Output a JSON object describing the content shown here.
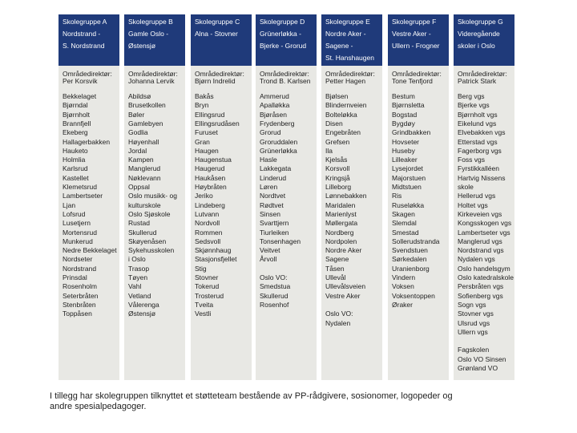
{
  "columns": [
    {
      "title": "Skolegruppe A",
      "area": [
        "Nordstrand -",
        "S. Nordstrand"
      ],
      "director_label": "Områdedirektør:",
      "director": "Per Korsvik",
      "schools": [
        "Bekkelaget",
        "Bjørndal",
        "Bjørnholt",
        "Brannfjell",
        "Ekeberg",
        "Hallagerbakken",
        "Hauketo",
        "Holmlia",
        "Karlsrud",
        "Kastellet",
        "Klemetsrud",
        "Lambertseter",
        "Ljan",
        "Lofsrud",
        "Lusetjern",
        "Mortensrud",
        "Munkerud",
        "Nedre Bekkelaget",
        "Nordseter",
        "Nordstrand",
        "Prinsdal",
        "Rosenholm",
        "Seterbråten",
        "Stenbråten",
        "Toppåsen"
      ]
    },
    {
      "title": "Skolegruppe B",
      "area": [
        "Gamle Oslo -",
        "Østensjø"
      ],
      "director_label": "Områdedirektør:",
      "director": "Johanna Lervik",
      "schools": [
        "Abildsø",
        "Brusetkollen",
        "Bøler",
        "Gamlebyen",
        "Godlia",
        "Høyenhall",
        "Jordal",
        "Kampen",
        "Manglerud",
        "Nøklevann",
        "Oppsal",
        "Oslo musikk- og",
        "kulturskole",
        "Oslo Sjøskole",
        "Rustad",
        "Skullerud",
        "Skøyenåsen",
        "Sykehusskolen",
        "i Oslo",
        "Trasop",
        "Tøyen",
        "Vahl",
        "Vetland",
        "Vålerenga",
        "Østensjø"
      ]
    },
    {
      "title": "Skolegruppe C",
      "area": [
        "Alna - Stovner"
      ],
      "director_label": "Områdedirektør:",
      "director": "Bjørn Indrelid",
      "schools": [
        "Bakås",
        "Bryn",
        "Ellingsrud",
        "Ellingsrudåsen",
        "Furuset",
        "Gran",
        "Haugen",
        "Haugenstua",
        "Haugerud",
        "Haukåsen",
        "Høybråten",
        "Jeriko",
        "Lindeberg",
        "Lutvann",
        "Nordvoll",
        "Rommen",
        "Sedsvoll",
        "Skjønnhaug",
        "Stasjonsfjellet",
        "Stig",
        "Stovner",
        "Tokerud",
        "Trosterud",
        "Tveita",
        "Vestli"
      ]
    },
    {
      "title": "Skolegruppe D",
      "area": [
        "Grünerløkka -",
        "Bjerke - Grorud"
      ],
      "director_label": "Områdedirektør:",
      "director": "Trond B. Karlsen",
      "schools": [
        "Ammerud",
        "Apalløkka",
        "Bjøråsen",
        "Frydenberg",
        "Grorud",
        "Groruddalen",
        "Grünerløkka",
        "Hasle",
        "Lakkegata",
        "Linderud",
        "Løren",
        "Nordtvet",
        "Rødtvet",
        "Sinsen",
        "Svarttjern",
        "Tiurleiken",
        "Tonsenhagen",
        "Veitvet",
        "Årvoll"
      ],
      "extra": [
        "Oslo VO:",
        "Smedstua",
        "Skullerud",
        "Rosenhof"
      ]
    },
    {
      "title": "Skolegruppe E",
      "area": [
        "Nordre Aker -",
        "Sagene -",
        "St. Hanshaugen"
      ],
      "director_label": "Områdedirektør:",
      "director": "Petter Hagen",
      "schools": [
        "Bjølsen",
        "Blindernveien",
        "Bolteløkka",
        "Disen",
        "Engebråten",
        "Grefsen",
        "Ila",
        "Kjelsås",
        "Korsvoll",
        "Kringsjå",
        "Lilleborg",
        "Lønnebakken",
        "Maridalen",
        "Marienlyst",
        "Møllergata",
        "Nordberg",
        "Nordpolen",
        "Nordre Aker",
        "Sagene",
        "Tåsen",
        "Ullevål",
        "Ullevålsveien",
        "Vestre Aker"
      ],
      "extra": [
        "Oslo VO:",
        "Nydalen"
      ]
    },
    {
      "title": "Skolegruppe F",
      "area": [
        "Vestre Aker -",
        "Ullern - Frogner"
      ],
      "director_label": "Områdedirektør:",
      "director": "Tone Tenfjord",
      "schools": [
        "Bestum",
        "Bjørnsletta",
        "Bogstad",
        "Bygdøy",
        "Grindbakken",
        "Hovseter",
        "Huseby",
        "Lilleaker",
        "Lysejordet",
        "Majorstuen",
        "Midtstuen",
        "Ris",
        "Ruseløkka",
        "Skagen",
        "Slemdal",
        "Smestad",
        "Sollerudstranda",
        "Svendstuen",
        "Sørkedalen",
        "Uranienborg",
        "Vindern",
        "Voksen",
        "Voksentoppen",
        "Øraker"
      ]
    },
    {
      "title": "Skolegruppe G",
      "area": [
        "Videregående",
        "skoler i Oslo"
      ],
      "director_label": "Områdedirektør:",
      "director": "Patrick Stark",
      "schools": [
        "Berg vgs",
        "Bjerke vgs",
        "Bjørnholt vgs",
        "Eikelund vgs",
        "Elvebakken vgs",
        "Etterstad vgs",
        "Fagerborg vgs",
        "Foss vgs",
        "Fyrstikkalléen",
        "Hartvig Nissens",
        "skole",
        "Hellerud vgs",
        "Holtet vgs",
        "Kirkeveien vgs",
        "Kongsskogen vgs",
        "Lambertseter vgs",
        "Manglerud vgs",
        "Nordstrand vgs",
        "Nydalen vgs",
        "Oslo handelsgym",
        "Oslo katedralskole",
        "Persbråten vgs",
        "Sofienberg vgs",
        "Sogn vgs",
        "Stovner vgs",
        "Ulsrud vgs",
        "Ullern vgs"
      ],
      "extra": [
        "Fagskolen",
        "Oslo VO Sinsen",
        "Grønland VO"
      ]
    }
  ],
  "footer": [
    "I tillegg har skolegruppen tilknyttet et støtteteam bestående av PP-rådgivere, sosionomer, logopeder og",
    "andre spesialpedagoger."
  ]
}
